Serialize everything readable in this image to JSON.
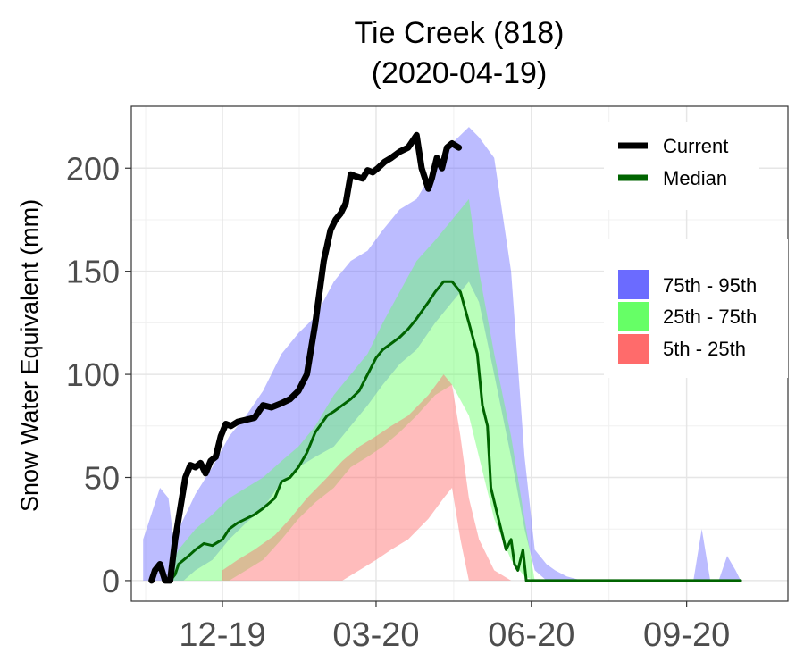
{
  "chart_data": {
    "type": "area",
    "title": "Tie Creek (818)",
    "subtitle": "(2020-04-19)",
    "xlabel": "",
    "ylabel": "Snow Water Equivalent (mm)",
    "ylim": [
      -10,
      230
    ],
    "xlim": [
      "2019-10-08",
      "2020-10-31"
    ],
    "yticks": [
      0,
      50,
      100,
      150,
      200
    ],
    "xticks": [
      {
        "date": "2019-12-01",
        "label": "12-19"
      },
      {
        "date": "2020-03-01",
        "label": "03-20"
      },
      {
        "date": "2020-06-01",
        "label": "06-20"
      },
      {
        "date": "2020-09-01",
        "label": "09-20"
      }
    ],
    "grid": true,
    "legend": {
      "position": "top-right",
      "lines": [
        {
          "name": "Current",
          "color": "#000000"
        },
        {
          "name": "Median",
          "color": "#006400"
        }
      ],
      "bands": [
        {
          "name": "75th - 95th",
          "color": "#6b6bff"
        },
        {
          "name": "25th - 75th",
          "color": "#66ff66"
        },
        {
          "name": "5th - 25th",
          "color": "#ff6b6b"
        }
      ]
    },
    "bands": {
      "p75_95": {
        "x": [
          "2019-10-15",
          "2019-10-19",
          "2019-10-25",
          "2019-10-30",
          "2019-11-02",
          "2019-11-08",
          "2019-11-15",
          "2019-11-25",
          "2019-12-05",
          "2019-12-15",
          "2019-12-25",
          "2020-01-05",
          "2020-01-15",
          "2020-01-25",
          "2020-02-05",
          "2020-02-15",
          "2020-02-25",
          "2020-03-05",
          "2020-03-15",
          "2020-03-25",
          "2020-04-05",
          "2020-04-15",
          "2020-04-25",
          "2020-05-01",
          "2020-05-10",
          "2020-05-20",
          "2020-05-28",
          "2020-06-03",
          "2020-06-10",
          "2020-06-15",
          "2020-06-22",
          "2020-07-01",
          "2020-08-01",
          "2020-09-05",
          "2020-09-10",
          "2020-09-15",
          "2020-09-20",
          "2020-09-25",
          "2020-09-30",
          "2020-10-03"
        ],
        "lower": [
          0,
          0,
          0,
          0,
          0,
          0,
          5,
          10,
          20,
          28,
          35,
          48,
          55,
          60,
          65,
          75,
          85,
          95,
          105,
          112,
          125,
          135,
          145,
          135,
          100,
          60,
          25,
          5,
          0,
          0,
          0,
          0,
          0,
          0,
          0,
          0,
          0,
          0,
          0,
          0
        ],
        "upper": [
          20,
          30,
          45,
          40,
          20,
          30,
          42,
          55,
          70,
          80,
          92,
          110,
          120,
          128,
          145,
          155,
          160,
          170,
          180,
          185,
          200,
          212,
          220,
          215,
          205,
          150,
          60,
          15,
          8,
          5,
          2,
          0,
          0,
          0,
          25,
          0,
          0,
          12,
          5,
          0
        ]
      },
      "p25_75": {
        "x": [
          "2019-10-30",
          "2019-11-05",
          "2019-11-15",
          "2019-11-25",
          "2019-12-05",
          "2019-12-15",
          "2019-12-25",
          "2020-01-05",
          "2020-01-15",
          "2020-01-25",
          "2020-02-05",
          "2020-02-15",
          "2020-02-25",
          "2020-03-05",
          "2020-03-15",
          "2020-03-25",
          "2020-04-05",
          "2020-04-15",
          "2020-04-25",
          "2020-05-01",
          "2020-05-10",
          "2020-05-20",
          "2020-05-28",
          "2020-06-03"
        ],
        "lower": [
          0,
          0,
          0,
          0,
          0,
          5,
          10,
          20,
          30,
          38,
          45,
          55,
          60,
          65,
          72,
          80,
          90,
          95,
          80,
          60,
          30,
          10,
          2,
          0
        ],
        "upper": [
          5,
          15,
          25,
          32,
          40,
          45,
          50,
          58,
          65,
          75,
          90,
          100,
          110,
          125,
          140,
          155,
          165,
          175,
          185,
          150,
          110,
          70,
          30,
          0
        ]
      },
      "p5_25": {
        "x": [
          "2019-12-01",
          "2019-12-10",
          "2019-12-20",
          "2020-01-01",
          "2020-01-10",
          "2020-01-20",
          "2020-02-01",
          "2020-02-10",
          "2020-02-20",
          "2020-03-01",
          "2020-03-10",
          "2020-03-20",
          "2020-04-01",
          "2020-04-10",
          "2020-04-15",
          "2020-04-20",
          "2020-04-25",
          "2020-05-01",
          "2020-05-10",
          "2020-05-20"
        ],
        "lower": [
          0,
          0,
          0,
          0,
          0,
          0,
          0,
          0,
          5,
          10,
          15,
          20,
          30,
          40,
          45,
          20,
          0,
          0,
          0,
          0
        ],
        "upper": [
          5,
          10,
          15,
          22,
          30,
          40,
          50,
          58,
          65,
          70,
          75,
          80,
          90,
          100,
          95,
          70,
          40,
          20,
          5,
          0
        ]
      }
    },
    "series": [
      {
        "name": "Current",
        "color": "#000000",
        "x": [
          "2019-10-20",
          "2019-10-22",
          "2019-10-25",
          "2019-10-28",
          "2019-10-31",
          "2019-11-03",
          "2019-11-06",
          "2019-11-09",
          "2019-11-12",
          "2019-11-15",
          "2019-11-18",
          "2019-11-21",
          "2019-11-24",
          "2019-11-27",
          "2019-11-30",
          "2019-12-03",
          "2019-12-06",
          "2019-12-10",
          "2019-12-15",
          "2019-12-20",
          "2019-12-25",
          "2019-12-30",
          "2020-01-05",
          "2020-01-10",
          "2020-01-15",
          "2020-01-20",
          "2020-01-25",
          "2020-01-30",
          "2020-02-03",
          "2020-02-06",
          "2020-02-09",
          "2020-02-12",
          "2020-02-15",
          "2020-02-18",
          "2020-02-22",
          "2020-02-25",
          "2020-02-28",
          "2020-03-02",
          "2020-03-06",
          "2020-03-10",
          "2020-03-15",
          "2020-03-20",
          "2020-03-25",
          "2020-03-28",
          "2020-04-01",
          "2020-04-03",
          "2020-04-06",
          "2020-04-09",
          "2020-04-12",
          "2020-04-15",
          "2020-04-19"
        ],
        "y": [
          0,
          5,
          8,
          0,
          0,
          20,
          35,
          50,
          56,
          55,
          57,
          52,
          58,
          60,
          70,
          76,
          75,
          77,
          78,
          79,
          85,
          84,
          86,
          88,
          92,
          100,
          125,
          155,
          170,
          175,
          178,
          183,
          197,
          196,
          195,
          199,
          198,
          200,
          203,
          205,
          208,
          210,
          216,
          200,
          190,
          195,
          205,
          200,
          210,
          212,
          210
        ]
      },
      {
        "name": "Median",
        "color": "#006400",
        "x": [
          "2019-10-31",
          "2019-11-03",
          "2019-11-05",
          "2019-11-08",
          "2019-11-11",
          "2019-11-15",
          "2019-11-20",
          "2019-11-25",
          "2019-12-01",
          "2019-12-05",
          "2019-12-10",
          "2019-12-15",
          "2019-12-20",
          "2019-12-25",
          "2020-01-01",
          "2020-01-05",
          "2020-01-10",
          "2020-01-15",
          "2020-01-20",
          "2020-01-25",
          "2020-02-01",
          "2020-02-05",
          "2020-02-10",
          "2020-02-15",
          "2020-02-20",
          "2020-02-25",
          "2020-03-01",
          "2020-03-05",
          "2020-03-10",
          "2020-03-15",
          "2020-03-20",
          "2020-03-25",
          "2020-04-01",
          "2020-04-05",
          "2020-04-10",
          "2020-04-15",
          "2020-04-20",
          "2020-04-25",
          "2020-04-30",
          "2020-05-03",
          "2020-05-06",
          "2020-05-08",
          "2020-05-11",
          "2020-05-14",
          "2020-05-17",
          "2020-05-20",
          "2020-05-22",
          "2020-05-24",
          "2020-05-27",
          "2020-05-29",
          "2020-06-03",
          "2020-07-01",
          "2020-08-01",
          "2020-09-01",
          "2020-10-03"
        ],
        "y": [
          0,
          3,
          8,
          10,
          12,
          15,
          18,
          17,
          20,
          25,
          28,
          30,
          32,
          35,
          40,
          48,
          50,
          55,
          62,
          72,
          80,
          82,
          85,
          88,
          92,
          100,
          108,
          112,
          115,
          118,
          122,
          127,
          135,
          140,
          145,
          145,
          140,
          125,
          110,
          85,
          75,
          45,
          35,
          25,
          15,
          20,
          8,
          5,
          15,
          0,
          0,
          0,
          0,
          0,
          0
        ]
      }
    ]
  }
}
